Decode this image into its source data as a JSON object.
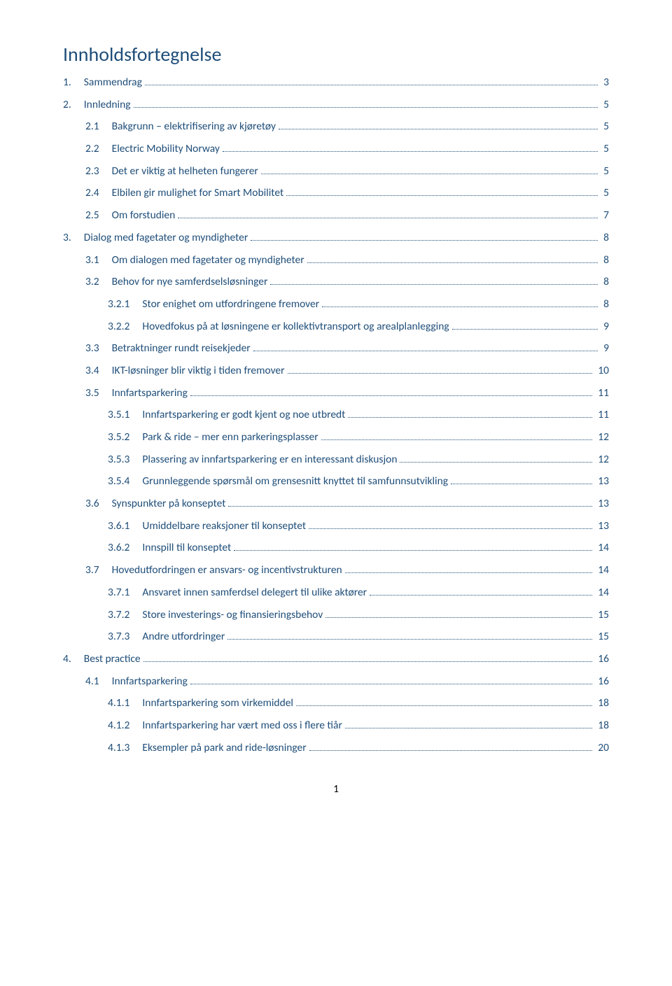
{
  "title": "Innholdsfortegnelse",
  "page_number": "1",
  "colors": {
    "heading": "#1f4e79",
    "link": "#1f4e79",
    "body": "#000000",
    "bg": "#ffffff"
  },
  "toc": [
    {
      "level": 1,
      "num": "1.",
      "text": "Sammendrag",
      "page": "3"
    },
    {
      "level": 1,
      "num": "2.",
      "text": "Innledning",
      "page": "5"
    },
    {
      "level": 2,
      "num": "2.1",
      "text": "Bakgrunn – elektrifisering av kjøretøy",
      "page": "5"
    },
    {
      "level": 2,
      "num": "2.2",
      "text": "Electric Mobility Norway",
      "page": "5"
    },
    {
      "level": 2,
      "num": "2.3",
      "text": "Det er viktig at helheten fungerer",
      "page": "5"
    },
    {
      "level": 2,
      "num": "2.4",
      "text": "Elbilen gir mulighet for Smart Mobilitet",
      "page": "5"
    },
    {
      "level": 2,
      "num": "2.5",
      "text": "Om forstudien",
      "page": "7"
    },
    {
      "level": 1,
      "num": "3.",
      "text": "Dialog med fagetater og myndigheter",
      "page": "8"
    },
    {
      "level": 2,
      "num": "3.1",
      "text": "Om dialogen med fagetater og myndigheter",
      "page": "8"
    },
    {
      "level": 2,
      "num": "3.2",
      "text": "Behov for nye samferdselsløsninger",
      "page": "8"
    },
    {
      "level": 3,
      "num": "3.2.1",
      "text": "Stor enighet om utfordringene fremover",
      "page": "8"
    },
    {
      "level": 3,
      "num": "3.2.2",
      "text": "Hovedfokus på at løsningene er kollektivtransport og arealplanlegging",
      "page": "9"
    },
    {
      "level": 2,
      "num": "3.3",
      "text": "Betraktninger rundt reisekjeder",
      "page": "9"
    },
    {
      "level": 2,
      "num": "3.4",
      "text": "IKT-løsninger blir viktig i tiden fremover",
      "page": "10"
    },
    {
      "level": 2,
      "num": "3.5",
      "text": "Innfartsparkering",
      "page": "11"
    },
    {
      "level": 3,
      "num": "3.5.1",
      "text": "Innfartsparkering er godt kjent og noe utbredt",
      "page": "11"
    },
    {
      "level": 3,
      "num": "3.5.2",
      "text": "Park & ride – mer enn parkeringsplasser",
      "page": "12"
    },
    {
      "level": 3,
      "num": "3.5.3",
      "text": "Plassering av innfartsparkering er en interessant diskusjon",
      "page": "12"
    },
    {
      "level": 3,
      "num": "3.5.4",
      "text": "Grunnleggende spørsmål om grensesnitt knyttet til samfunnsutvikling",
      "page": "13"
    },
    {
      "level": 2,
      "num": "3.6",
      "text": "Synspunkter på konseptet",
      "page": "13"
    },
    {
      "level": 3,
      "num": "3.6.1",
      "text": "Umiddelbare reaksjoner til konseptet",
      "page": "13"
    },
    {
      "level": 3,
      "num": "3.6.2",
      "text": "Innspill til konseptet",
      "page": "14"
    },
    {
      "level": 2,
      "num": "3.7",
      "text": "Hovedutfordringen er ansvars- og incentivstrukturen",
      "page": "14"
    },
    {
      "level": 3,
      "num": "3.7.1",
      "text": "Ansvaret innen samferdsel delegert til ulike aktører",
      "page": "14"
    },
    {
      "level": 3,
      "num": "3.7.2",
      "text": "Store investerings- og finansieringsbehov",
      "page": "15"
    },
    {
      "level": 3,
      "num": "3.7.3",
      "text": "Andre utfordringer",
      "page": "15"
    },
    {
      "level": 1,
      "num": "4.",
      "text": "Best practice",
      "page": "16"
    },
    {
      "level": 2,
      "num": "4.1",
      "text": "Innfartsparkering",
      "page": "16"
    },
    {
      "level": 3,
      "num": "4.1.1",
      "text": "Innfartsparkering som virkemiddel",
      "page": "18"
    },
    {
      "level": 3,
      "num": "4.1.2",
      "text": "Innfartsparkering har vært med oss i flere tiår",
      "page": "18"
    },
    {
      "level": 3,
      "num": "4.1.3",
      "text": "Eksempler på park and ride-løsninger",
      "page": "20"
    }
  ]
}
